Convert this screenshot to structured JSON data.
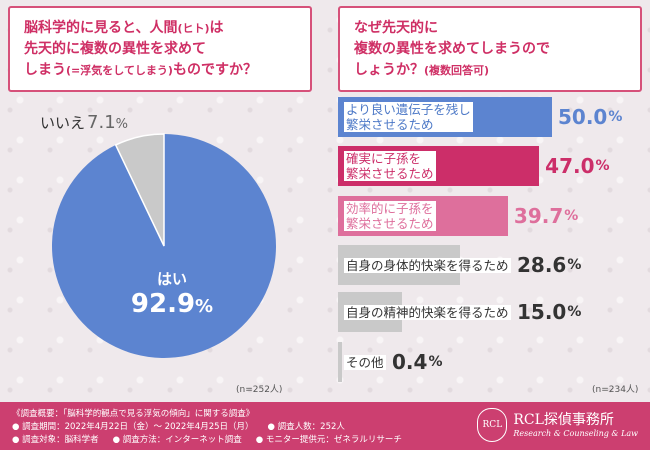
{
  "left_question": {
    "line1": "脳科学的に見ると、人間",
    "line1_paren": "(ヒト)",
    "line1_end": "は",
    "line2": "先天的に複数の異性を求めて",
    "line3": "しまう",
    "line3_paren": "(=浮気をしてしまう)",
    "line3_end": "ものですか？"
  },
  "right_question": {
    "line1": "なぜ先天的に",
    "line2": "複数の異性を求めてしまうので",
    "line3": "しょうか？",
    "line3_note": "(複数回答可)"
  },
  "colors": {
    "pie_yes": "#5c84d0",
    "pie_no": "#c9c9c9",
    "bar_1": "#5c84d0",
    "bar_2": "#cc2e69",
    "bar_3": "#de6f9c",
    "bar_gray": "#c9c9c9",
    "accent": "#cc3f70"
  },
  "chart_data": [
    {
      "type": "pie",
      "slices": [
        {
          "label": "はい",
          "value": 92.9,
          "display": "92.9",
          "unit": "%"
        },
        {
          "label": "いいえ",
          "value": 7.1,
          "display": "7.1",
          "unit": "%"
        }
      ],
      "note": "(n=252人)"
    },
    {
      "type": "bar",
      "orientation": "horizontal",
      "xlim": [
        0,
        50
      ],
      "bars": [
        {
          "lines": [
            "より良い遺伝子を残し",
            "繁栄させるため"
          ],
          "value": 50.0,
          "display": "50.0",
          "unit": "%",
          "style": "blue"
        },
        {
          "lines": [
            "確実に子孫を",
            "繁栄させるため"
          ],
          "value": 47.0,
          "display": "47.0",
          "unit": "%",
          "style": "pink"
        },
        {
          "lines": [
            "効率的に子孫を",
            "繁栄させるため"
          ],
          "value": 39.7,
          "display": "39.7",
          "unit": "%",
          "style": "lpink"
        },
        {
          "lines": [
            "自身の身体的快楽を得るため"
          ],
          "value": 28.6,
          "display": "28.6",
          "unit": "%",
          "style": "gray"
        },
        {
          "lines": [
            "自身の精神的快楽を得るため"
          ],
          "value": 15.0,
          "display": "15.0",
          "unit": "%",
          "style": "gray"
        },
        {
          "lines": [
            "その他"
          ],
          "value": 0.4,
          "display": "0.4",
          "unit": "%",
          "style": "gray"
        }
      ],
      "note": "(n=234人)"
    }
  ],
  "footer": {
    "title": "《調査概要：「脳科学的観点で見る浮気の傾向」に関する調査》",
    "period": "● 調査期間：2022年4月22日（金）～ 2022年4月25日（月）",
    "count": "● 調査人数：252人",
    "target": "● 調査対象：脳科学者",
    "method": "● 調査方法：インターネット調査",
    "provider": "● モニター提供元：ゼネラルリサーチ"
  },
  "brand": {
    "logo_letters": "RCL",
    "name": "RCL探偵事務所",
    "subtitle": "Research & Counseling & Law"
  }
}
